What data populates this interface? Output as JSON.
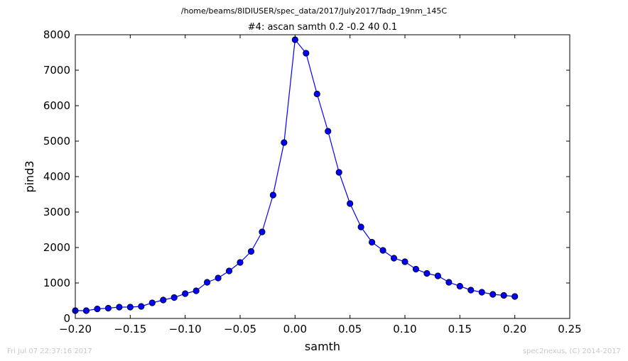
{
  "suptitle": "/home/beams/8IDIUSER/spec_data/2017/July2017/Tadp_19nm_145C",
  "footer_left": "Fri Jul 07 22:37:16 2017",
  "footer_right": "spec2nexus, (C) 2014-2017",
  "colors": {
    "series": "#0000ff",
    "axes": "#000000",
    "footer": "#c8c8c8"
  },
  "chart_data": {
    "type": "line",
    "title": "#4: ascan  samth 0.2 -0.2  40 0.1",
    "xlabel": "samth",
    "ylabel": "pind3",
    "xlim": [
      -0.2,
      0.25
    ],
    "ylim": [
      0,
      8000
    ],
    "xticks": [
      -0.2,
      -0.15,
      -0.1,
      -0.05,
      0.0,
      0.05,
      0.1,
      0.15,
      0.2,
      0.25
    ],
    "xtick_labels": [
      "−0.20",
      "−0.15",
      "−0.10",
      "−0.05",
      "0.00",
      "0.05",
      "0.10",
      "0.15",
      "0.20",
      "0.25"
    ],
    "yticks": [
      0,
      1000,
      2000,
      3000,
      4000,
      5000,
      6000,
      7000,
      8000
    ],
    "ytick_labels": [
      "0",
      "1000",
      "2000",
      "3000",
      "4000",
      "5000",
      "6000",
      "7000",
      "8000"
    ],
    "grid": false,
    "legend": "none",
    "marker": "circle",
    "series": [
      {
        "x": [
          -0.2,
          -0.19,
          -0.18,
          -0.17,
          -0.16,
          -0.15,
          -0.14,
          -0.13,
          -0.12,
          -0.11,
          -0.1,
          -0.09,
          -0.08,
          -0.07,
          -0.06,
          -0.05,
          -0.04,
          -0.03,
          -0.02,
          -0.01,
          0.0,
          0.01,
          0.02,
          0.03,
          0.04,
          0.05,
          0.06,
          0.07,
          0.08,
          0.09,
          0.1,
          0.11,
          0.12,
          0.13,
          0.14,
          0.15,
          0.16,
          0.17,
          0.18,
          0.19,
          0.2
        ],
        "y": [
          220,
          220,
          270,
          290,
          320,
          320,
          340,
          440,
          520,
          590,
          700,
          780,
          1020,
          1140,
          1340,
          1580,
          1890,
          2440,
          3480,
          4960,
          7860,
          7480,
          6330,
          5280,
          4120,
          3240,
          2580,
          2150,
          1920,
          1700,
          1600,
          1390,
          1270,
          1200,
          1020,
          910,
          800,
          740,
          680,
          650,
          620
        ]
      }
    ]
  }
}
